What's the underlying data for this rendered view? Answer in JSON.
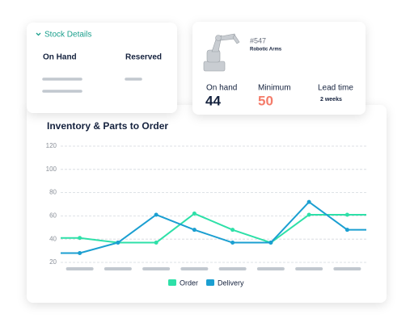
{
  "stock_details": {
    "title": "Stock Details",
    "columns": [
      "On Hand",
      "Reserved"
    ]
  },
  "item": {
    "id": "#547",
    "name": "Robotic Arms",
    "stats": [
      {
        "label": "On hand",
        "value": 44
      },
      {
        "label": "Minimum",
        "value": 50
      },
      {
        "label": "Lead time",
        "value": "2 weeks"
      }
    ]
  },
  "chart_data": {
    "type": "line",
    "title": "Inventory & Parts to Order",
    "categories": [
      null,
      null,
      null,
      null,
      null,
      null,
      null,
      null
    ],
    "series": [
      {
        "name": "Order",
        "color": "#2ee0a8",
        "values": [
          41,
          37,
          37,
          62,
          48,
          37,
          61,
          61
        ]
      },
      {
        "name": "Delivery",
        "color": "#1b9fd1",
        "values": [
          28,
          37,
          61,
          48,
          37,
          37,
          72,
          48
        ]
      }
    ],
    "ylim": [
      20,
      120
    ],
    "yticks": [
      20,
      40,
      60,
      80,
      100,
      120
    ],
    "grid": true
  }
}
